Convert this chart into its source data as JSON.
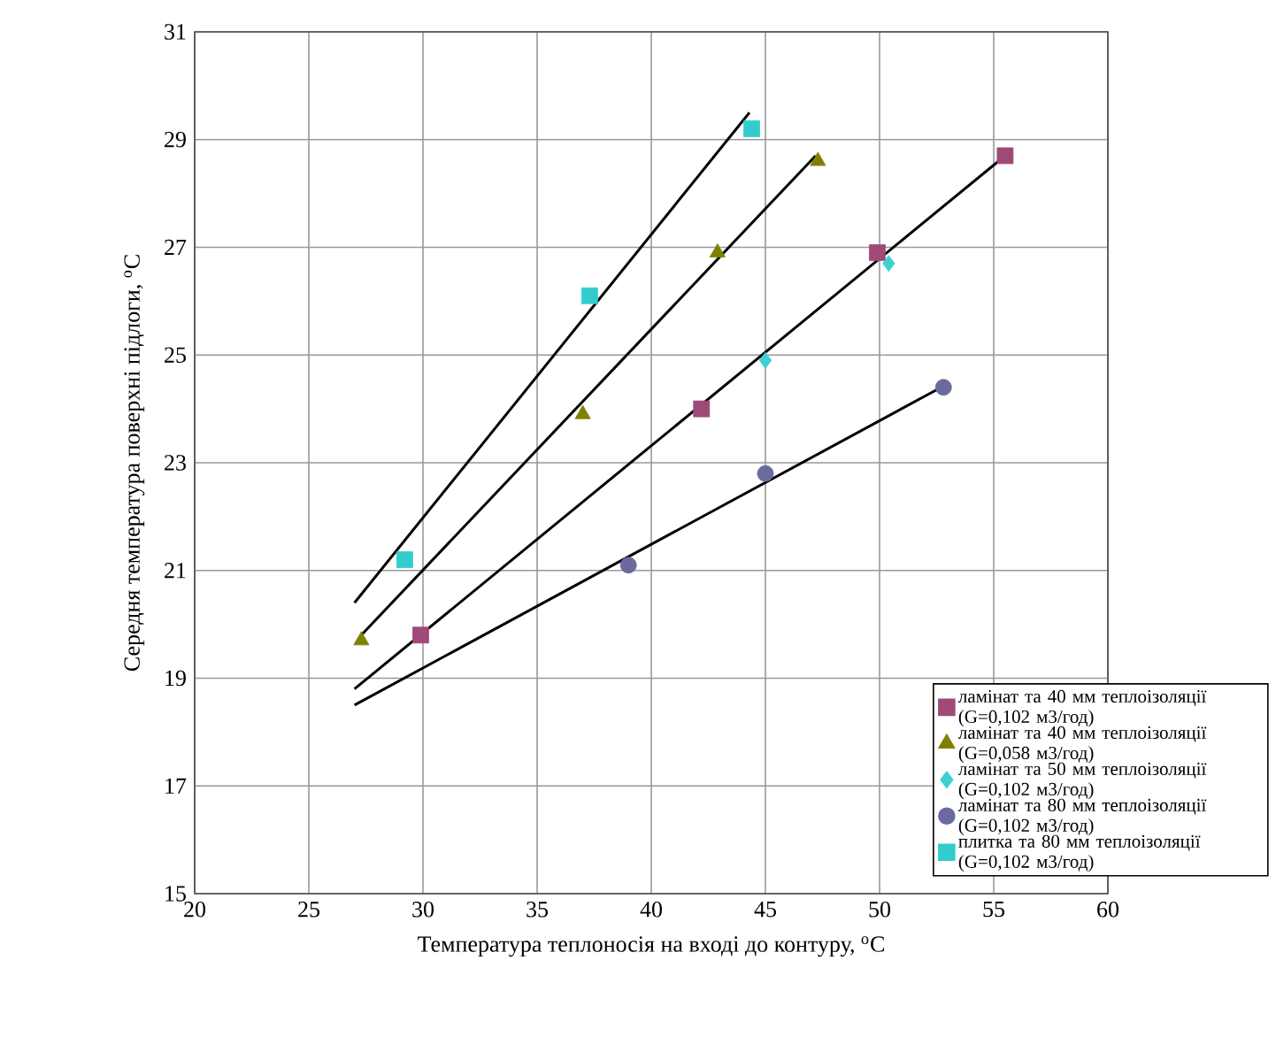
{
  "chart_data": {
    "type": "scatter",
    "xlabel": "Температура теплоносія на вході до контуру, $^{o}$C",
    "ylabel": "Середня температура поверхні підлоги, $^{o}$C",
    "xlim": [
      20,
      60
    ],
    "xticks": [
      20,
      25,
      30,
      35,
      40,
      45,
      50,
      55,
      60
    ],
    "ylim": [
      15,
      31
    ],
    "yticks": [
      15,
      17,
      19,
      21,
      23,
      25,
      27,
      29,
      31
    ],
    "grid": true,
    "legend": "bottom right",
    "series": [
      {
        "name": "ламінат та 40 мм теплоізоляції (G=0,102 м3/год)",
        "color": "#9e4a78",
        "marker": "square",
        "x": [
          29.9,
          42.2,
          49.9,
          55.5
        ],
        "values": [
          19.8,
          24.0,
          26.9,
          28.7
        ]
      },
      {
        "name": "ламінат та 40 мм теплоізоляції (G=0,058 м3/год)",
        "color": "#808000",
        "marker": "triangle",
        "x": [
          27.3,
          37.0,
          42.9,
          47.3
        ],
        "values": [
          19.7,
          23.9,
          26.9,
          28.6
        ]
      },
      {
        "name": "ламінат та 50 мм теплоізоляції (G=0,102 м3/год)",
        "color": "#40d0d0",
        "marker": "diamond",
        "x": [
          45.0,
          50.4
        ],
        "values": [
          24.9,
          26.7
        ]
      },
      {
        "name": "ламінат та 80 мм теплоізоляції (G=0,102 м3/год)",
        "color": "#6a6a9e",
        "marker": "circle",
        "x": [
          39.0,
          45.0,
          52.8
        ],
        "values": [
          21.1,
          22.8,
          24.4
        ]
      },
      {
        "name": "плитка та 80 мм теплоізоляції (G=0,102 м3/год)",
        "color": "#33cccc",
        "marker": "square",
        "x": [
          29.2,
          37.3,
          44.4
        ],
        "values": [
          21.2,
          26.1,
          29.2
        ]
      },
      {
        "type": "line",
        "color": "#000000",
        "x": [
          27.0,
          44.3
        ],
        "values": [
          20.4,
          29.5
        ]
      },
      {
        "type": "line",
        "color": "#000000",
        "x": [
          27.3,
          47.2
        ],
        "values": [
          19.8,
          28.7
        ]
      },
      {
        "type": "line",
        "color": "#000000",
        "x": [
          27.0,
          55.5
        ],
        "values": [
          18.8,
          28.7
        ]
      },
      {
        "type": "line",
        "color": "#000000",
        "x": [
          27.0,
          52.7
        ],
        "values": [
          18.5,
          24.4
        ]
      }
    ]
  }
}
